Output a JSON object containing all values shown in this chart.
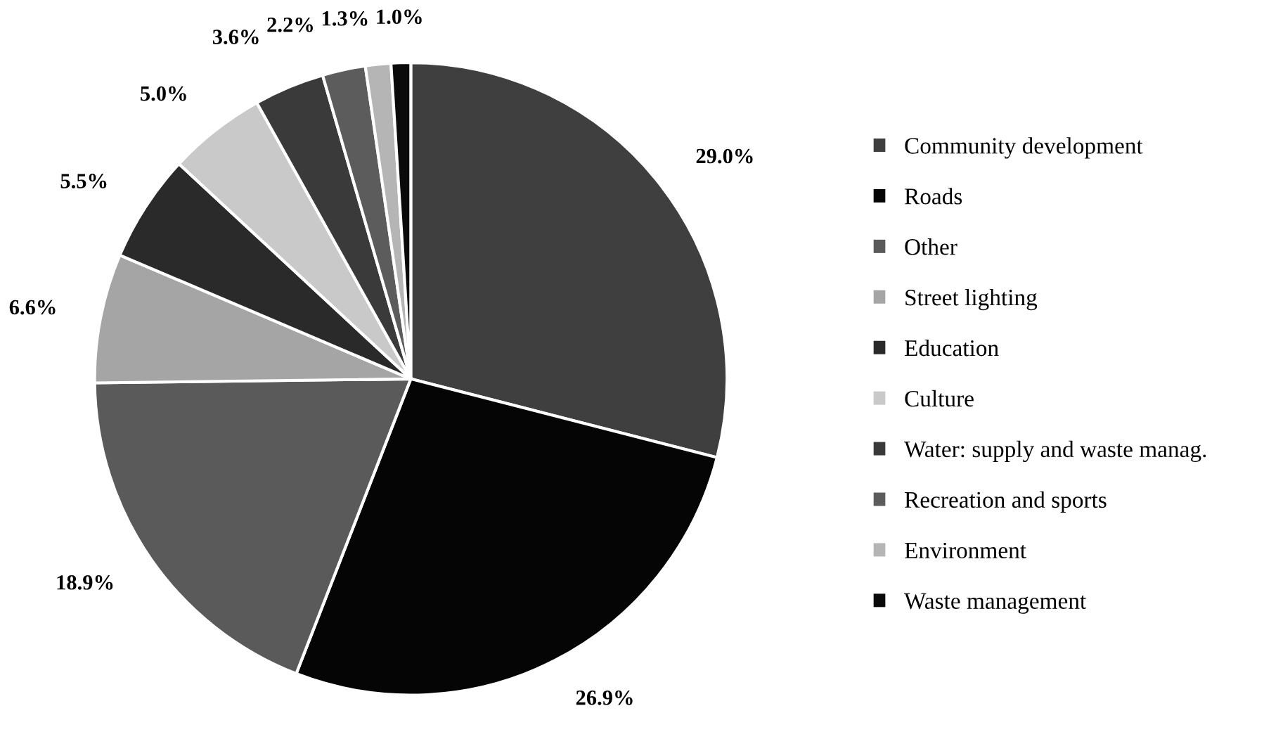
{
  "chart_data": {
    "type": "pie",
    "categories": [
      "Community development",
      "Roads",
      "Other",
      "Street lighting",
      "Education",
      "Culture",
      "Water: supply and waste manag.",
      "Recreation and sports",
      "Environment",
      "Waste management"
    ],
    "values": [
      29.0,
      26.9,
      18.9,
      6.6,
      5.5,
      5.0,
      3.6,
      2.2,
      1.3,
      1.0
    ],
    "value_labels": [
      "29.0%",
      "26.9%",
      "18.9%",
      "6.6%",
      "5.5%",
      "5.0%",
      "3.6%",
      "2.2%",
      "1.3%",
      "1.0%"
    ],
    "colors": [
      "#3f3f3f",
      "#050505",
      "#5a5a5a",
      "#a5a5a5",
      "#2a2a2a",
      "#c9c9c9",
      "#3a3a3a",
      "#5c5c5c",
      "#b5b5b5",
      "#0a0a0a"
    ],
    "legend": "right"
  }
}
